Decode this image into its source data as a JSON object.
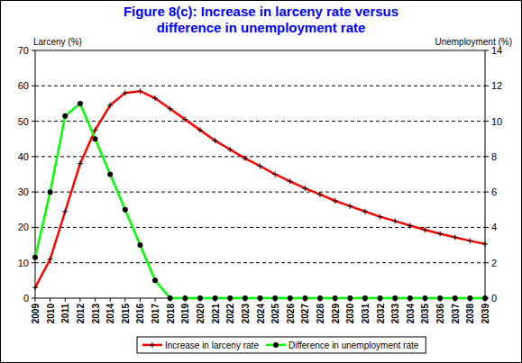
{
  "chart_data": {
    "type": "line",
    "title": "Figure 8(c): Increase in larceny rate versus difference in unemployment rate",
    "y_label": "Larceny (%)",
    "y2_label": "Unemployment (%)",
    "categories": [
      "2009",
      "2010",
      "2011",
      "2012",
      "2013",
      "2014",
      "2015",
      "2016",
      "2017",
      "2018",
      "2019",
      "2020",
      "2021",
      "2022",
      "2023",
      "2024",
      "2025",
      "2026",
      "2027",
      "2028",
      "2029",
      "2030",
      "2031",
      "2032",
      "2033",
      "2034",
      "2035",
      "2036",
      "2037",
      "2038",
      "2039"
    ],
    "ylim": [
      0,
      70
    ],
    "yticks": [
      0,
      10,
      20,
      30,
      40,
      50,
      60,
      70
    ],
    "y2lim": [
      0,
      14
    ],
    "y2ticks": [
      0,
      2,
      4,
      6,
      8,
      10,
      12,
      14
    ],
    "grid": true,
    "legend": "bottom",
    "series": [
      {
        "name": "Increase in larceny rate",
        "color": "#ff0000",
        "marker": "plus",
        "line_style": "solid",
        "values": [
          3,
          11,
          24.5,
          38,
          47.5,
          54.5,
          58,
          58.5,
          56.5,
          53.5,
          50.5,
          47.5,
          44.5,
          42,
          39.5,
          37.3,
          35,
          33,
          31,
          29.3,
          27.5,
          26,
          24.5,
          23,
          21.8,
          20.5,
          19.3,
          18.2,
          17.2,
          16.2,
          15.3
        ]
      },
      {
        "name": "Difference in unemployment rate",
        "color": "#00ff00",
        "marker": "circle",
        "line_style": "solid",
        "axis": "y2",
        "values": [
          2.3,
          6,
          10.3,
          11,
          9,
          7,
          5,
          3,
          1,
          0,
          0,
          0,
          0,
          0,
          0,
          0,
          0,
          0,
          0,
          0,
          0,
          0,
          0,
          0,
          0,
          0,
          0,
          0,
          0,
          0,
          0
        ]
      }
    ]
  }
}
